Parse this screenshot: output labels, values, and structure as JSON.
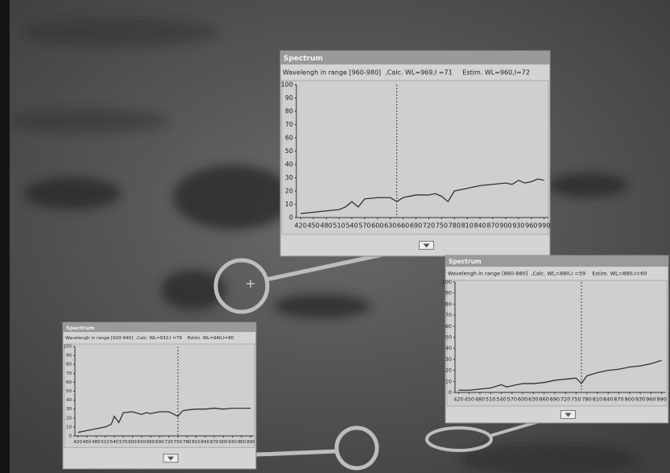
{
  "chart_data": [
    {
      "type": "line",
      "title": "Spectrum",
      "subtitle": "Wavelengh in range [960-980]  ,Calc. WL=969,I =71     Estim. WL=960,I=72",
      "x": [
        420,
        450,
        480,
        510,
        525,
        540,
        555,
        570,
        600,
        630,
        645,
        660,
        690,
        720,
        735,
        750,
        765,
        780,
        810,
        840,
        870,
        900,
        915,
        930,
        945,
        960,
        975,
        990
      ],
      "series": [
        {
          "color": "#333333",
          "values": [
            3,
            4,
            5,
            6,
            8,
            12,
            8,
            14,
            15,
            15,
            12,
            15,
            17,
            17,
            18,
            16,
            12,
            20,
            22,
            24,
            25,
            26,
            25,
            28,
            26,
            27,
            29,
            28
          ]
        }
      ],
      "vline": 645,
      "xlim": [
        410,
        1000
      ],
      "ylim": [
        0,
        100
      ],
      "xticks": [
        420,
        450,
        480,
        510,
        540,
        570,
        600,
        630,
        660,
        690,
        720,
        750,
        780,
        810,
        840,
        870,
        900,
        930,
        960,
        990
      ],
      "yticks": [
        0,
        10,
        20,
        30,
        40,
        50,
        60,
        70,
        80,
        90,
        100
      ]
    },
    {
      "type": "line",
      "title": "Spectrum",
      "subtitle": "Wavelengh in range [860-880]  ,Calc. WL=880,I =59    Estim. WL=880,I=60",
      "x": [
        420,
        450,
        480,
        510,
        540,
        555,
        570,
        600,
        630,
        660,
        690,
        720,
        750,
        765,
        780,
        810,
        840,
        870,
        900,
        930,
        960,
        990
      ],
      "series": [
        {
          "color": "#333333",
          "values": [
            2,
            2,
            3,
            4,
            7,
            5,
            6,
            8,
            8,
            9,
            11,
            12,
            13,
            8,
            15,
            18,
            20,
            21,
            23,
            24,
            26,
            29
          ]
        }
      ],
      "vline": 765,
      "xlim": [
        410,
        1000
      ],
      "ylim": [
        0,
        100
      ],
      "xticks": [
        420,
        450,
        480,
        510,
        540,
        570,
        600,
        630,
        660,
        690,
        720,
        750,
        780,
        810,
        840,
        870,
        900,
        930,
        960,
        990
      ],
      "yticks": [
        0,
        10,
        20,
        30,
        40,
        50,
        60,
        70,
        80,
        90,
        100
      ]
    },
    {
      "type": "line",
      "title": "Spectrum",
      "subtitle": "Wavelengh in range [920-940]  ,Calc. WL=932,I =79    Estim. WL=940,I=80",
      "x": [
        420,
        450,
        480,
        510,
        530,
        540,
        555,
        570,
        600,
        630,
        645,
        660,
        690,
        720,
        750,
        765,
        780,
        810,
        840,
        870,
        900,
        930,
        960,
        990
      ],
      "series": [
        {
          "color": "#333333",
          "values": [
            4,
            6,
            8,
            10,
            13,
            22,
            15,
            26,
            27,
            24,
            26,
            25,
            27,
            27,
            22,
            28,
            29,
            30,
            30,
            31,
            30,
            31,
            31,
            31
          ]
        }
      ],
      "vline": 750,
      "xlim": [
        410,
        1000
      ],
      "ylim": [
        0,
        100
      ],
      "xticks": [
        420,
        450,
        480,
        510,
        540,
        570,
        600,
        630,
        660,
        690,
        720,
        750,
        780,
        810,
        840,
        870,
        900,
        930,
        960,
        990
      ],
      "yticks": [
        0,
        10,
        20,
        30,
        40,
        50,
        60,
        70,
        80,
        90,
        100
      ]
    }
  ]
}
